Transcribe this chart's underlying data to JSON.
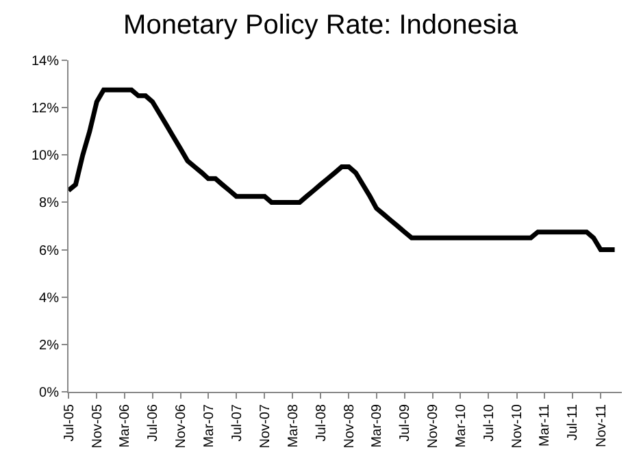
{
  "chart_data": {
    "type": "line",
    "title": "Monetary Policy Rate: Indonesia",
    "x": [
      "2005-07",
      "2005-08",
      "2005-09",
      "2005-10",
      "2005-11",
      "2005-12",
      "2006-01",
      "2006-02",
      "2006-03",
      "2006-04",
      "2006-05",
      "2006-06",
      "2006-07",
      "2006-08",
      "2006-09",
      "2006-10",
      "2006-11",
      "2006-12",
      "2007-01",
      "2007-02",
      "2007-03",
      "2007-04",
      "2007-05",
      "2007-06",
      "2007-07",
      "2007-08",
      "2007-09",
      "2007-10",
      "2007-11",
      "2007-12",
      "2008-01",
      "2008-02",
      "2008-03",
      "2008-04",
      "2008-05",
      "2008-06",
      "2008-07",
      "2008-08",
      "2008-09",
      "2008-10",
      "2008-11",
      "2008-12",
      "2009-01",
      "2009-02",
      "2009-03",
      "2009-04",
      "2009-05",
      "2009-06",
      "2009-07",
      "2009-08",
      "2009-09",
      "2009-10",
      "2009-11",
      "2009-12",
      "2010-01",
      "2010-02",
      "2010-03",
      "2010-04",
      "2010-05",
      "2010-06",
      "2010-07",
      "2010-08",
      "2010-09",
      "2010-10",
      "2010-11",
      "2010-12",
      "2011-01",
      "2011-02",
      "2011-03",
      "2011-04",
      "2011-05",
      "2011-06",
      "2011-07",
      "2011-08",
      "2011-09",
      "2011-10",
      "2011-11",
      "2011-12",
      "2012-01"
    ],
    "series": [
      {
        "color": "#000000",
        "values": [
          8.5,
          8.75,
          10,
          11,
          12.25,
          12.75,
          12.75,
          12.75,
          12.75,
          12.75,
          12.5,
          12.5,
          12.25,
          11.75,
          11.25,
          10.75,
          10.25,
          9.75,
          9.5,
          9.25,
          9,
          9,
          8.75,
          8.5,
          8.25,
          8.25,
          8.25,
          8.25,
          8.25,
          8,
          8,
          8,
          8,
          8,
          8.25,
          8.5,
          8.75,
          9,
          9.25,
          9.5,
          9.5,
          9.25,
          8.75,
          8.25,
          7.75,
          7.5,
          7.25,
          7,
          6.75,
          6.5,
          6.5,
          6.5,
          6.5,
          6.5,
          6.5,
          6.5,
          6.5,
          6.5,
          6.5,
          6.5,
          6.5,
          6.5,
          6.5,
          6.5,
          6.5,
          6.5,
          6.5,
          6.75,
          6.75,
          6.75,
          6.75,
          6.75,
          6.75,
          6.75,
          6.75,
          6.5,
          6,
          6,
          6
        ]
      }
    ],
    "xlim": [
      "2005-07",
      "2012-02"
    ],
    "xticks": [
      {
        "value": "2005-07",
        "label": "Jul-05"
      },
      {
        "value": "2005-11",
        "label": "Nov-05"
      },
      {
        "value": "2006-03",
        "label": "Mar-06"
      },
      {
        "value": "2006-07",
        "label": "Jul-06"
      },
      {
        "value": "2006-11",
        "label": "Nov-06"
      },
      {
        "value": "2007-03",
        "label": "Mar-07"
      },
      {
        "value": "2007-07",
        "label": "Jul-07"
      },
      {
        "value": "2007-11",
        "label": "Nov-07"
      },
      {
        "value": "2008-03",
        "label": "Mar-08"
      },
      {
        "value": "2008-07",
        "label": "Jul-08"
      },
      {
        "value": "2008-11",
        "label": "Nov-08"
      },
      {
        "value": "2009-03",
        "label": "Mar-09"
      },
      {
        "value": "2009-07",
        "label": "Jul-09"
      },
      {
        "value": "2009-11",
        "label": "Nov-09"
      },
      {
        "value": "2010-03",
        "label": "Mar-10"
      },
      {
        "value": "2010-07",
        "label": "Jul-10"
      },
      {
        "value": "2010-11",
        "label": "Nov-10"
      },
      {
        "value": "2011-03",
        "label": "Mar-11"
      },
      {
        "value": "2011-07",
        "label": "Jul-11"
      },
      {
        "value": "2011-11",
        "label": "Nov-11"
      }
    ],
    "ylim": [
      0,
      14
    ],
    "yticks": [
      {
        "value": 0,
        "label": "0%"
      },
      {
        "value": 2,
        "label": "2%"
      },
      {
        "value": 4,
        "label": "4%"
      },
      {
        "value": 6,
        "label": "6%"
      },
      {
        "value": 8,
        "label": "8%"
      },
      {
        "value": 10,
        "label": "10%"
      },
      {
        "value": 12,
        "label": "12%"
      },
      {
        "value": 14,
        "label": "14%"
      }
    ],
    "grid": false,
    "legend": false,
    "marker": "none",
    "line_style": "solid"
  }
}
